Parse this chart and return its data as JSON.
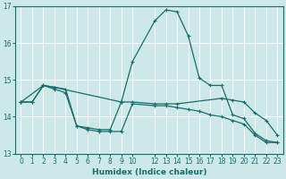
{
  "xlabel": "Humidex (Indice chaleur)",
  "bg_color": "#cce8e8",
  "grid_color": "#ffffff",
  "line_color": "#1a6b6b",
  "xlim": [
    -0.5,
    23.5
  ],
  "ylim": [
    13,
    17
  ],
  "yticks": [
    13,
    14,
    15,
    16,
    17
  ],
  "xticks": [
    0,
    1,
    2,
    3,
    4,
    5,
    6,
    7,
    8,
    9,
    10,
    12,
    13,
    14,
    15,
    16,
    17,
    18,
    19,
    20,
    21,
    22,
    23
  ],
  "xtick_labels": [
    "0",
    "1",
    "2",
    "3",
    "4",
    "5",
    "6",
    "7",
    "8",
    "9",
    "10",
    "12",
    "13",
    "14",
    "15",
    "16",
    "17",
    "18",
    "19",
    "20",
    "21",
    "22",
    "23"
  ],
  "line1_x": [
    0,
    1,
    2,
    3,
    4,
    5,
    6,
    7,
    8,
    9,
    10,
    12,
    13,
    14,
    15,
    16,
    17,
    18,
    19,
    20,
    21,
    22,
    23
  ],
  "line1_y": [
    14.4,
    14.4,
    14.85,
    14.8,
    14.75,
    13.75,
    13.7,
    13.65,
    13.65,
    14.4,
    15.5,
    16.6,
    16.9,
    16.85,
    16.2,
    15.05,
    14.85,
    14.85,
    14.05,
    13.95,
    13.55,
    13.35,
    13.3
  ],
  "line2_x": [
    0,
    2,
    3,
    9,
    10,
    12,
    13,
    14,
    18,
    19,
    20,
    21,
    22,
    23
  ],
  "line2_y": [
    14.4,
    14.85,
    14.8,
    14.4,
    14.4,
    14.35,
    14.35,
    14.35,
    14.5,
    14.45,
    14.4,
    14.1,
    13.9,
    13.5
  ],
  "line3_x": [
    0,
    1,
    2,
    3,
    4,
    5,
    6,
    7,
    8,
    9,
    10,
    12,
    13,
    14,
    15,
    16,
    17,
    18,
    19,
    20,
    21,
    22,
    23
  ],
  "line3_y": [
    14.4,
    14.4,
    14.85,
    14.75,
    14.65,
    13.75,
    13.65,
    13.6,
    13.6,
    13.6,
    14.35,
    14.3,
    14.3,
    14.25,
    14.2,
    14.15,
    14.05,
    14.0,
    13.9,
    13.8,
    13.5,
    13.3,
    13.3
  ]
}
